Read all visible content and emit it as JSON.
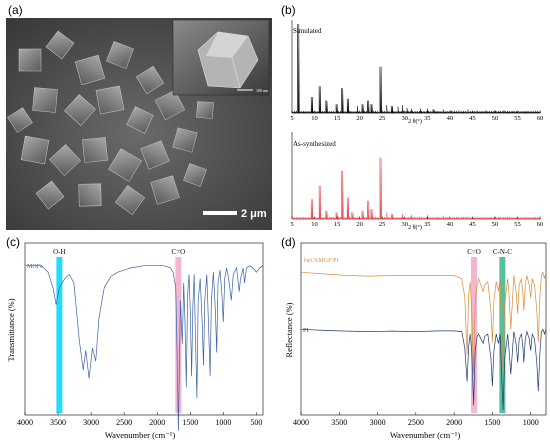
{
  "panel_labels": {
    "a": "(a)",
    "b": "(b)",
    "c": "(c)",
    "d": "(d)"
  },
  "panel_a": {
    "scale_bar_label": "2 μm",
    "inset_scale_label": "100 nm"
  },
  "chart_data": [
    {
      "type": "line",
      "title": "Simulated",
      "xlabel": "2 θ(°)",
      "xlim": [
        5,
        60
      ],
      "xticks": [
        5,
        10,
        15,
        20,
        25,
        30,
        35,
        40,
        45,
        50,
        55,
        60
      ],
      "color": "#000000",
      "peaks": [
        [
          6.4,
          100
        ],
        [
          9.3,
          18
        ],
        [
          11.1,
          30
        ],
        [
          12.7,
          14
        ],
        [
          14.8,
          10
        ],
        [
          16.2,
          28
        ],
        [
          17.3,
          16
        ],
        [
          19.5,
          8
        ],
        [
          20.6,
          10
        ],
        [
          21.8,
          14
        ],
        [
          22.6,
          10
        ],
        [
          24.6,
          52
        ],
        [
          26.0,
          9
        ],
        [
          27.1,
          8
        ],
        [
          28.5,
          7
        ],
        [
          29.5,
          9
        ],
        [
          30.5,
          6
        ],
        [
          31.5,
          5
        ],
        [
          33.5,
          5
        ],
        [
          35.0,
          5
        ],
        [
          36.4,
          4
        ],
        [
          38.5,
          4
        ],
        [
          40.2,
          3
        ],
        [
          42.0,
          3
        ],
        [
          44.0,
          4
        ],
        [
          46.0,
          3
        ],
        [
          48.0,
          3
        ],
        [
          50.0,
          3
        ],
        [
          52.0,
          3
        ],
        [
          54.0,
          2
        ],
        [
          56.0,
          2
        ],
        [
          58.0,
          2
        ]
      ]
    },
    {
      "type": "line",
      "title": "As-synthesized",
      "xlabel": "2 θ(°)",
      "xlim": [
        5,
        60
      ],
      "xticks": [
        5,
        10,
        15,
        20,
        25,
        30,
        35,
        40,
        45,
        50,
        55,
        60
      ],
      "color": "#e8424b",
      "peaks": [
        [
          9.3,
          24
        ],
        [
          11.1,
          40
        ],
        [
          12.7,
          10
        ],
        [
          14.8,
          8
        ],
        [
          16.2,
          58
        ],
        [
          17.3,
          26
        ],
        [
          18.4,
          8
        ],
        [
          20.6,
          10
        ],
        [
          21.8,
          22
        ],
        [
          22.6,
          12
        ],
        [
          24.6,
          74
        ],
        [
          26.0,
          8
        ],
        [
          27.1,
          6
        ],
        [
          29.5,
          6
        ],
        [
          31.5,
          5
        ],
        [
          35.0,
          5
        ],
        [
          38.5,
          4
        ],
        [
          44.0,
          3
        ],
        [
          50.0,
          3
        ]
      ]
    },
    {
      "type": "line",
      "xlabel": "Wavenumber (cm⁻¹)",
      "ylabel": "Transmittance (%)",
      "xlim": [
        4000,
        400
      ],
      "xticks": [
        4000,
        3500,
        3000,
        2500,
        2000,
        1500,
        1000,
        500
      ],
      "series": [
        {
          "name": "MOFs",
          "color": "#3a62a8",
          "points": [
            [
              4000,
              96
            ],
            [
              3750,
              96
            ],
            [
              3650,
              93
            ],
            [
              3570,
              85
            ],
            [
              3530,
              78
            ],
            [
              3480,
              86
            ],
            [
              3400,
              90
            ],
            [
              3330,
              92
            ],
            [
              3260,
              88
            ],
            [
              3180,
              62
            ],
            [
              3120,
              48
            ],
            [
              3080,
              57
            ],
            [
              3030,
              44
            ],
            [
              2980,
              58
            ],
            [
              2930,
              52
            ],
            [
              2880,
              72
            ],
            [
              2800,
              86
            ],
            [
              2700,
              91
            ],
            [
              2600,
              93
            ],
            [
              2400,
              95
            ],
            [
              2200,
              96
            ],
            [
              2000,
              96
            ],
            [
              1900,
              96
            ],
            [
              1800,
              95
            ],
            [
              1760,
              93
            ],
            [
              1720,
              86
            ],
            [
              1700,
              55
            ],
            [
              1680,
              20
            ],
            [
              1665,
              50
            ],
            [
              1650,
              80
            ],
            [
              1620,
              60
            ],
            [
              1600,
              88
            ],
            [
              1580,
              70
            ],
            [
              1560,
              40
            ],
            [
              1540,
              82
            ],
            [
              1520,
              92
            ],
            [
              1500,
              75
            ],
            [
              1480,
              45
            ],
            [
              1460,
              78
            ],
            [
              1440,
              92
            ],
            [
              1420,
              60
            ],
            [
              1400,
              35
            ],
            [
              1380,
              80
            ],
            [
              1350,
              90
            ],
            [
              1320,
              70
            ],
            [
              1300,
              50
            ],
            [
              1280,
              80
            ],
            [
              1250,
              92
            ],
            [
              1220,
              65
            ],
            [
              1200,
              45
            ],
            [
              1180,
              80
            ],
            [
              1150,
              93
            ],
            [
              1120,
              75
            ],
            [
              1100,
              56
            ],
            [
              1080,
              88
            ],
            [
              1050,
              94
            ],
            [
              1020,
              82
            ],
            [
              1000,
              70
            ],
            [
              980,
              90
            ],
            [
              950,
              95
            ],
            [
              920,
              90
            ],
            [
              880,
              80
            ],
            [
              850,
              92
            ],
            [
              800,
              95
            ],
            [
              760,
              84
            ],
            [
              740,
              90
            ],
            [
              700,
              95
            ],
            [
              680,
              88
            ],
            [
              650,
              95
            ],
            [
              600,
              96
            ],
            [
              550,
              95
            ],
            [
              500,
              93
            ],
            [
              450,
              95
            ],
            [
              400,
              96
            ]
          ]
        }
      ],
      "band_labels": [
        {
          "text": "O-H",
          "x": 3480,
          "color": "#00d5ff"
        },
        {
          "text": "C=O",
          "x": 1680,
          "color": "#f2a8c9"
        }
      ]
    },
    {
      "type": "line",
      "xlabel": "Wavenumber (cm⁻¹)",
      "ylabel": "Reflectance (%)",
      "xlim": [
        4000,
        800
      ],
      "xticks": [
        4000,
        3500,
        3000,
        2500,
        2000,
        1500,
        1000
      ],
      "series": [
        {
          "name": "1wt.%MGF/PI",
          "color": "#d98e37",
          "points": [
            [
              4000,
              92
            ],
            [
              3700,
              91.5
            ],
            [
              3400,
              91
            ],
            [
              3100,
              90.8
            ],
            [
              2800,
              91
            ],
            [
              2500,
              91
            ],
            [
              2200,
              91
            ],
            [
              2000,
              91
            ],
            [
              1900,
              90
            ],
            [
              1860,
              84
            ],
            [
              1830,
              66
            ],
            [
              1810,
              85
            ],
            [
              1790,
              89
            ],
            [
              1770,
              80
            ],
            [
              1745,
              60
            ],
            [
              1725,
              83
            ],
            [
              1700,
              88
            ],
            [
              1680,
              90
            ],
            [
              1650,
              88
            ],
            [
              1620,
              86
            ],
            [
              1600,
              88
            ],
            [
              1560,
              89
            ],
            [
              1520,
              80
            ],
            [
              1500,
              70
            ],
            [
              1480,
              83
            ],
            [
              1450,
              89
            ],
            [
              1420,
              86
            ],
            [
              1400,
              90
            ],
            [
              1380,
              75
            ],
            [
              1360,
              60
            ],
            [
              1340,
              82
            ],
            [
              1300,
              90
            ],
            [
              1280,
              84
            ],
            [
              1260,
              74
            ],
            [
              1240,
              82
            ],
            [
              1220,
              91
            ],
            [
              1190,
              86
            ],
            [
              1170,
              79
            ],
            [
              1150,
              88
            ],
            [
              1120,
              90
            ],
            [
              1100,
              85
            ],
            [
              1090,
              80
            ],
            [
              1070,
              88
            ],
            [
              1050,
              91
            ],
            [
              1020,
              88
            ],
            [
              1000,
              84
            ],
            [
              980,
              90
            ],
            [
              950,
              88
            ],
            [
              920,
              80
            ],
            [
              900,
              70
            ],
            [
              880,
              84
            ],
            [
              860,
              91
            ],
            [
              840,
              92
            ],
            [
              820,
              90
            ],
            [
              800,
              92
            ]
          ]
        },
        {
          "name": "PI",
          "color": "#1f3b73",
          "points": [
            [
              4000,
              64
            ],
            [
              3700,
              63.5
            ],
            [
              3400,
              63.2
            ],
            [
              3100,
              63
            ],
            [
              2800,
              63.2
            ],
            [
              2500,
              63
            ],
            [
              2200,
              63.3
            ],
            [
              2000,
              63.3
            ],
            [
              1900,
              63
            ],
            [
              1860,
              56
            ],
            [
              1830,
              42
            ],
            [
              1810,
              57
            ],
            [
              1790,
              62
            ],
            [
              1770,
              55
            ],
            [
              1745,
              32
            ],
            [
              1725,
              55
            ],
            [
              1700,
              61
            ],
            [
              1680,
              62
            ],
            [
              1650,
              60
            ],
            [
              1620,
              58
            ],
            [
              1600,
              61
            ],
            [
              1560,
              62
            ],
            [
              1520,
              52
            ],
            [
              1500,
              40
            ],
            [
              1480,
              55
            ],
            [
              1450,
              62
            ],
            [
              1420,
              58
            ],
            [
              1400,
              62
            ],
            [
              1380,
              45
            ],
            [
              1360,
              30
            ],
            [
              1340,
              52
            ],
            [
              1300,
              62
            ],
            [
              1280,
              54
            ],
            [
              1260,
              45
            ],
            [
              1240,
              54
            ],
            [
              1220,
              63
            ],
            [
              1190,
              58
            ],
            [
              1170,
              50
            ],
            [
              1150,
              60
            ],
            [
              1120,
              62
            ],
            [
              1100,
              56
            ],
            [
              1090,
              50
            ],
            [
              1070,
              60
            ],
            [
              1050,
              63
            ],
            [
              1020,
              60
            ],
            [
              1000,
              55
            ],
            [
              980,
              62
            ],
            [
              950,
              60
            ],
            [
              920,
              50
            ],
            [
              900,
              38
            ],
            [
              880,
              54
            ],
            [
              860,
              63
            ],
            [
              840,
              64
            ],
            [
              820,
              62
            ],
            [
              800,
              64
            ]
          ]
        }
      ],
      "band_labels": [
        {
          "text": "C=O",
          "x": 1740,
          "color": "#f2a8c9"
        },
        {
          "text": "C-N-C",
          "x": 1370,
          "color": "#37b58a"
        }
      ]
    }
  ]
}
